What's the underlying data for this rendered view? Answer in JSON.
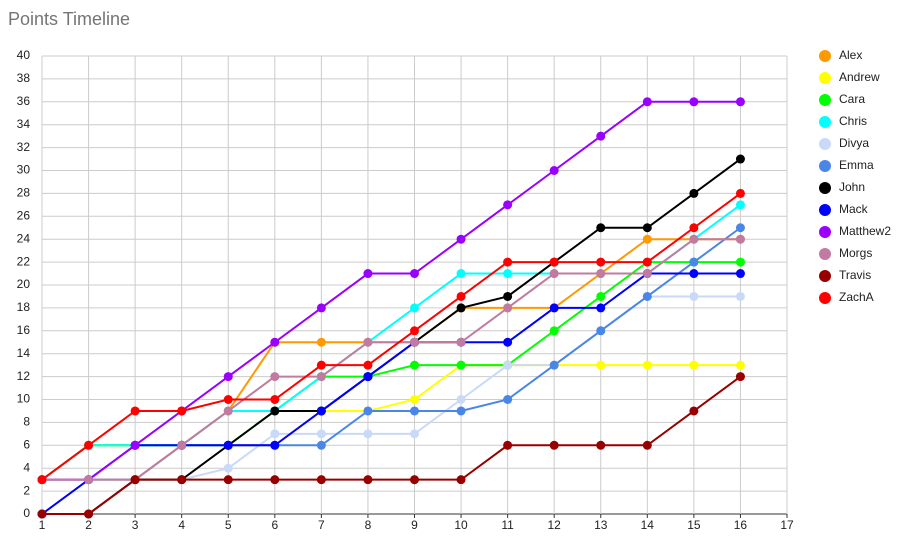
{
  "chart_data": {
    "type": "line",
    "title": "Points Timeline",
    "x": [
      1,
      2,
      3,
      4,
      5,
      6,
      7,
      8,
      9,
      10,
      11,
      12,
      13,
      14,
      15,
      16
    ],
    "xlim": [
      1,
      17
    ],
    "xticks": [
      1,
      2,
      3,
      4,
      5,
      6,
      7,
      8,
      9,
      10,
      11,
      12,
      13,
      14,
      15,
      16,
      17
    ],
    "ylim": [
      0,
      40
    ],
    "yticks": [
      0,
      2,
      4,
      6,
      8,
      10,
      12,
      14,
      16,
      18,
      20,
      22,
      24,
      26,
      28,
      30,
      32,
      34,
      36,
      38,
      40
    ],
    "grid": true,
    "legend": "right",
    "series": [
      {
        "name": "Alex",
        "color": "#ff9900",
        "values": [
          3,
          6,
          6,
          6,
          9,
          15,
          15,
          15,
          15,
          18,
          18,
          18,
          21,
          24,
          24,
          24
        ]
      },
      {
        "name": "Andrew",
        "color": "#ffff00",
        "values": [
          3,
          3,
          3,
          6,
          6,
          6,
          9,
          9,
          10,
          13,
          13,
          13,
          13,
          13,
          13,
          13
        ]
      },
      {
        "name": "Cara",
        "color": "#00ff00",
        "values": [
          3,
          6,
          6,
          6,
          6,
          9,
          12,
          12,
          13,
          13,
          13,
          16,
          19,
          22,
          22,
          22
        ]
      },
      {
        "name": "Chris",
        "color": "#00ffff",
        "values": [
          3,
          6,
          6,
          6,
          9,
          9,
          12,
          15,
          18,
          21,
          21,
          21,
          21,
          21,
          24,
          27
        ]
      },
      {
        "name": "Divya",
        "color": "#c9daf8",
        "values": [
          3,
          3,
          3,
          3,
          4,
          7,
          7,
          7,
          7,
          10,
          13,
          13,
          16,
          19,
          19,
          19
        ]
      },
      {
        "name": "Emma",
        "color": "#4a86e8",
        "values": [
          3,
          3,
          3,
          6,
          6,
          6,
          6,
          9,
          9,
          9,
          10,
          13,
          16,
          19,
          22,
          25
        ]
      },
      {
        "name": "John",
        "color": "#000000",
        "values": [
          0,
          0,
          3,
          3,
          6,
          9,
          9,
          12,
          15,
          18,
          19,
          22,
          25,
          25,
          28,
          31
        ]
      },
      {
        "name": "Mack",
        "color": "#0000ff",
        "values": [
          0,
          3,
          6,
          6,
          6,
          6,
          9,
          12,
          15,
          15,
          15,
          18,
          18,
          21,
          21,
          21
        ]
      },
      {
        "name": "Matthew2",
        "color": "#9900ff",
        "values": [
          3,
          3,
          6,
          9,
          12,
          15,
          18,
          21,
          21,
          24,
          27,
          30,
          33,
          36,
          36,
          36
        ]
      },
      {
        "name": "Morgs",
        "color": "#c27ba0",
        "values": [
          3,
          3,
          3,
          6,
          9,
          12,
          12,
          15,
          15,
          15,
          18,
          21,
          21,
          21,
          24,
          24
        ]
      },
      {
        "name": "Travis",
        "color": "#980000",
        "values": [
          0,
          0,
          3,
          3,
          3,
          3,
          3,
          3,
          3,
          3,
          6,
          6,
          6,
          6,
          9,
          12
        ]
      },
      {
        "name": "ZachA",
        "color": "#ff0000",
        "values": [
          3,
          6,
          9,
          9,
          10,
          10,
          13,
          13,
          16,
          19,
          22,
          22,
          22,
          22,
          25,
          28
        ]
      }
    ]
  }
}
